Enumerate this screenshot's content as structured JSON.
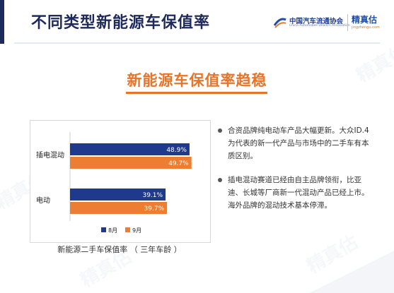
{
  "header": {
    "title": "不同类型新能源车保值率",
    "logo_cada_cn": "中国汽车流通协会",
    "logo_cada_en": "China Automobile Dealers Association",
    "logo_jzg_cn": "精真估",
    "logo_jzg_en": "jingzhengu.com"
  },
  "band": {
    "title": "新能源车保值率趋稳"
  },
  "colors": {
    "aug": "#1f3a8c",
    "sep": "#ed7d31",
    "header_text": "#1f2a5c",
    "accent": "#e8742a"
  },
  "chart_data": {
    "type": "bar",
    "orientation": "horizontal",
    "categories": [
      "插电混动",
      "电动"
    ],
    "series": [
      {
        "name": "8月",
        "values": [
          48.9,
          39.1
        ]
      },
      {
        "name": "9月",
        "values": [
          49.7,
          39.7
        ]
      }
    ],
    "value_format": "%",
    "legend_position": "bottom",
    "grid": false,
    "xlim": [
      0,
      55
    ],
    "caption": "新能源二手车保值率 （ 三年车龄 ）"
  },
  "bullets": [
    "合资品牌纯电动车产品大幅更新。大众ID.4为代表的新一代产品与市场中的二手车有本质区别。",
    "插电混动赛道已经由自主品牌领衔，比亚迪、长城等厂商新一代混动产品已经上市。海外品牌的混动技术基本停滞。"
  ],
  "watermark": "精真估"
}
